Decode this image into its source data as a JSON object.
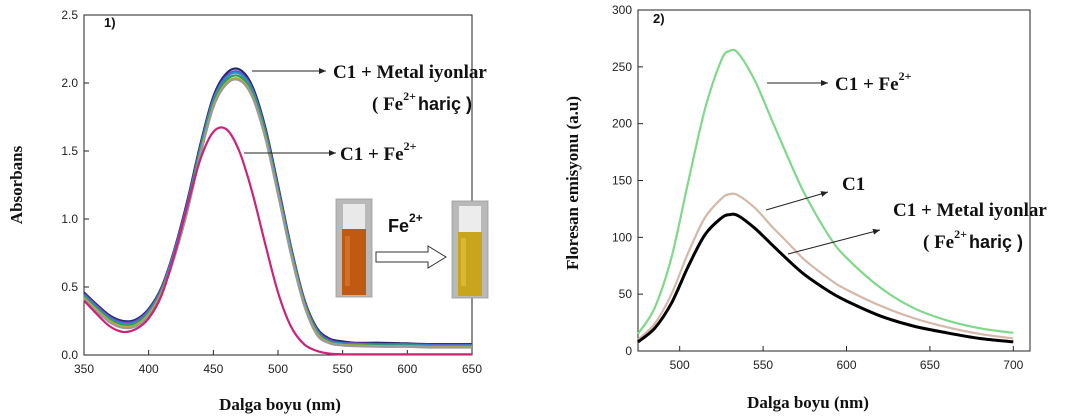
{
  "chart_data": [
    {
      "panel_label": "1)",
      "type": "line",
      "xlabel": "Dalga boyu (nm)",
      "ylabel": "Absorbans",
      "xlim": [
        350,
        650
      ],
      "ylim": [
        0,
        2.5
      ],
      "xticks": [
        350,
        400,
        450,
        500,
        550,
        600,
        650
      ],
      "yticks": [
        0.0,
        0.5,
        1.0,
        1.5,
        2.0,
        2.5
      ],
      "x": [
        350,
        360,
        370,
        380,
        390,
        400,
        410,
        420,
        430,
        440,
        450,
        460,
        470,
        480,
        490,
        500,
        510,
        520,
        530,
        540,
        550,
        560,
        580,
        600,
        620,
        650
      ],
      "series": [
        {
          "color": "#1f2a6e",
          "values": [
            0.46,
            0.37,
            0.29,
            0.25,
            0.26,
            0.34,
            0.5,
            0.78,
            1.14,
            1.55,
            1.9,
            2.07,
            2.1,
            1.98,
            1.68,
            1.25,
            0.8,
            0.42,
            0.2,
            0.12,
            0.1,
            0.09,
            0.09,
            0.085,
            0.08,
            0.08
          ]
        },
        {
          "color": "#7f3fbf",
          "values": [
            0.45,
            0.36,
            0.28,
            0.24,
            0.25,
            0.33,
            0.49,
            0.77,
            1.12,
            1.53,
            1.88,
            2.05,
            2.08,
            1.96,
            1.66,
            1.23,
            0.79,
            0.41,
            0.19,
            0.11,
            0.09,
            0.085,
            0.08,
            0.08,
            0.075,
            0.075
          ]
        },
        {
          "color": "#2a8fd6",
          "values": [
            0.44,
            0.35,
            0.27,
            0.23,
            0.24,
            0.32,
            0.48,
            0.76,
            1.11,
            1.52,
            1.87,
            2.04,
            2.07,
            1.95,
            1.65,
            1.22,
            0.78,
            0.4,
            0.18,
            0.1,
            0.085,
            0.08,
            0.075,
            0.075,
            0.07,
            0.07
          ]
        },
        {
          "color": "#2e9e4a",
          "values": [
            0.43,
            0.34,
            0.26,
            0.22,
            0.23,
            0.31,
            0.47,
            0.74,
            1.09,
            1.5,
            1.85,
            2.02,
            2.05,
            1.93,
            1.63,
            1.2,
            0.76,
            0.39,
            0.17,
            0.095,
            0.08,
            0.075,
            0.07,
            0.07,
            0.065,
            0.065
          ]
        },
        {
          "color": "#b8b02a",
          "values": [
            0.42,
            0.33,
            0.25,
            0.21,
            0.22,
            0.3,
            0.46,
            0.73,
            1.07,
            1.48,
            1.83,
            2.0,
            2.03,
            1.91,
            1.61,
            1.19,
            0.75,
            0.38,
            0.16,
            0.09,
            0.075,
            0.07,
            0.065,
            0.065,
            0.06,
            0.06
          ]
        },
        {
          "color": "#9a9a9a",
          "values": [
            0.41,
            0.32,
            0.24,
            0.2,
            0.21,
            0.29,
            0.45,
            0.72,
            1.06,
            1.47,
            1.82,
            1.99,
            2.02,
            1.9,
            1.6,
            1.18,
            0.74,
            0.37,
            0.15,
            0.085,
            0.07,
            0.065,
            0.06,
            0.06,
            0.055,
            0.055
          ]
        },
        {
          "color": "#cc2277",
          "values": [
            0.4,
            0.3,
            0.21,
            0.17,
            0.19,
            0.27,
            0.44,
            0.74,
            1.1,
            1.44,
            1.64,
            1.66,
            1.5,
            1.2,
            0.82,
            0.46,
            0.21,
            0.08,
            0.03,
            0.01,
            0.005,
            0.005,
            0.005,
            0.005,
            0.005,
            0.005
          ]
        }
      ],
      "annotations": {
        "metal_line1": "C1 + Metal iyonlar",
        "metal_open": "( Fe",
        "metal_sup": "2+",
        "metal_close": "hariç )",
        "fe_main": "C1 + Fe",
        "fe_sup": "2+",
        "inset_main": "Fe",
        "inset_sup": "2+"
      }
    },
    {
      "panel_label": "2)",
      "type": "line",
      "xlabel": "Dalga boyu (nm)",
      "ylabel": "Floresan emisyonu (a.u)",
      "xlim": [
        475,
        710
      ],
      "ylim": [
        0,
        300
      ],
      "xticks": [
        500,
        550,
        600,
        650,
        700
      ],
      "yticks": [
        0,
        50,
        100,
        150,
        200,
        250,
        300
      ],
      "x": [
        475,
        485,
        495,
        505,
        515,
        525,
        530,
        535,
        545,
        555,
        565,
        575,
        590,
        600,
        620,
        640,
        660,
        680,
        700
      ],
      "series": [
        {
          "color": "#7fd98a",
          "values": [
            15,
            38,
            82,
            148,
            212,
            256,
            264,
            262,
            238,
            204,
            170,
            138,
            100,
            82,
            56,
            38,
            27,
            20,
            16
          ]
        },
        {
          "color": "#d4b8a8",
          "values": [
            10,
            24,
            50,
            86,
            117,
            134,
            138,
            137,
            126,
            110,
            95,
            80,
            63,
            54,
            40,
            29,
            21,
            15,
            11
          ]
        },
        {
          "color": "#000000",
          "values": [
            8,
            20,
            42,
            74,
            102,
            117,
            120,
            119,
            108,
            94,
            80,
            67,
            52,
            44,
            31,
            22,
            16,
            11,
            8
          ]
        }
      ],
      "annotations": {
        "fe_main": "C1 + Fe",
        "fe_sup": "2+",
        "c1": "C1",
        "metal_line1": "C1 + Metal iyonlar",
        "metal_open": "( Fe",
        "metal_sup": "2+",
        "metal_close": "hariç )"
      }
    }
  ]
}
